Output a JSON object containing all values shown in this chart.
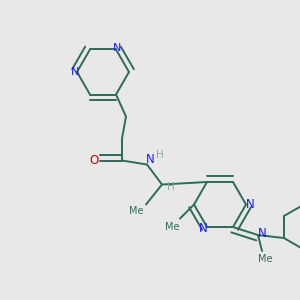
{
  "bg_color": "#e8e8e8",
  "bond_color": "#2d6b5a",
  "n_color": "#1a1aff",
  "o_color": "#cc0000",
  "h_color": "#8aaa95",
  "line_width": 1.4,
  "fig_size": [
    3.0,
    3.0
  ],
  "dpi": 100,
  "xlim": [
    0,
    300
  ],
  "ylim": [
    0,
    300
  ]
}
